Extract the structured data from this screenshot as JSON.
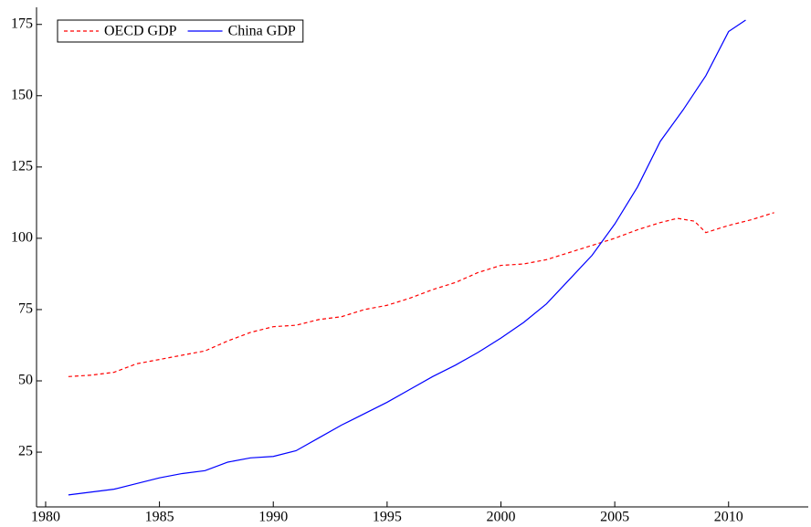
{
  "chart_data": {
    "type": "line",
    "xlim": [
      1979.6,
      2013.5
    ],
    "xticks": [
      1980,
      1985,
      1990,
      1995,
      2000,
      2005,
      2010
    ],
    "ylim": [
      5.8,
      181
    ],
    "yticks": [
      25,
      50,
      75,
      100,
      125,
      150,
      175
    ],
    "legend": "top-left",
    "series": [
      {
        "name": "OECD GDP",
        "color": "#ff0000",
        "dash": true,
        "x": [
          1981,
          1982,
          1983,
          1984,
          1985,
          1986,
          1987,
          1988,
          1989,
          1990,
          1991,
          1992,
          1993,
          1994,
          1995,
          1996,
          1997,
          1998,
          1999,
          2000,
          2001,
          2002,
          2003,
          2004,
          2005,
          2006,
          2007,
          2007.75,
          2008.5,
          2009,
          2010,
          2011,
          2012
        ],
        "values": [
          51.5,
          52,
          53,
          56,
          57.5,
          59,
          60.5,
          64,
          67,
          69,
          69.5,
          71.5,
          72.5,
          75,
          76.5,
          79,
          82,
          84.5,
          88,
          90.5,
          91,
          92.5,
          95,
          97.5,
          100,
          103,
          105.5,
          107,
          106,
          102,
          104.5,
          106.5,
          109
        ]
      },
      {
        "name": "China GDP",
        "color": "#0000ff",
        "dash": false,
        "x": [
          1981,
          1982,
          1983,
          1984,
          1985,
          1986,
          1987,
          1988,
          1989,
          1990,
          1991,
          1992,
          1993,
          1994,
          1995,
          1996,
          1997,
          1998,
          1999,
          2000,
          2001,
          2002,
          2003,
          2004,
          2005,
          2006,
          2007,
          2008,
          2009,
          2010,
          2010.75
        ],
        "values": [
          10,
          11,
          12,
          14,
          16,
          17.5,
          18.5,
          21.5,
          23,
          23.5,
          25.5,
          30,
          34.5,
          38.5,
          42.5,
          47,
          51.5,
          55.5,
          60,
          65,
          70.5,
          77,
          85.5,
          94,
          105,
          118,
          134,
          145,
          157,
          172.5,
          176.5
        ]
      }
    ]
  }
}
